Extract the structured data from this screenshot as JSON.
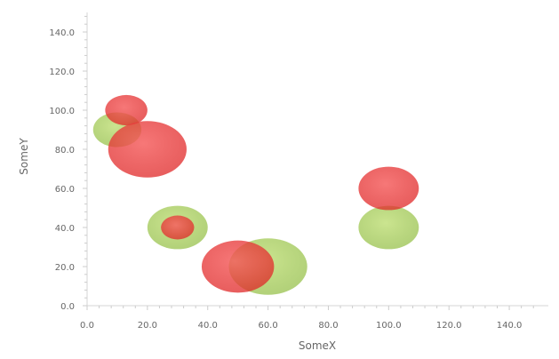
{
  "chart_data": {
    "type": "scatter",
    "xlabel": "SomeX",
    "ylabel": "SomeY",
    "xlim": [
      0,
      150
    ],
    "ylim": [
      0,
      150
    ],
    "x_ticks": [
      "0.0",
      "20.0",
      "40.0",
      "60.0",
      "80.0",
      "100.0",
      "120.0",
      "140.0"
    ],
    "y_ticks": [
      "0.0",
      "20.0",
      "40.0",
      "60.0",
      "80.0",
      "100.0",
      "120.0",
      "140.0"
    ],
    "grid": false,
    "legend": "none",
    "series": [
      {
        "color": "#9cc94d",
        "points": [
          {
            "x": 10,
            "y": 90,
            "size": 8
          },
          {
            "x": 30,
            "y": 40,
            "size": 10
          },
          {
            "x": 60,
            "y": 20,
            "size": 13
          },
          {
            "x": 100,
            "y": 40,
            "size": 10
          }
        ]
      },
      {
        "color": "#ee3b3b",
        "points": [
          {
            "x": 13,
            "y": 100,
            "size": 7
          },
          {
            "x": 20,
            "y": 80,
            "size": 13
          },
          {
            "x": 30,
            "y": 40,
            "size": 5.5
          },
          {
            "x": 50,
            "y": 20,
            "size": 12
          },
          {
            "x": 100,
            "y": 60,
            "size": 10
          }
        ]
      }
    ]
  }
}
